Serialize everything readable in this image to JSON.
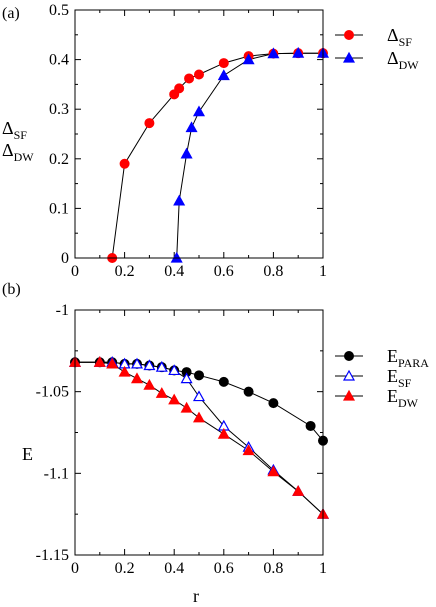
{
  "chart_data": [
    {
      "panel_label": "(a)",
      "type": "line",
      "ylabel": [
        "Δ",
        "SF",
        "Δ",
        "DW"
      ],
      "xlim": [
        0,
        1
      ],
      "ylim": [
        0,
        0.5
      ],
      "xticks": [
        "0",
        "0.2",
        "0.4",
        "0.6",
        "0.8",
        "1"
      ],
      "xtick_values": [
        0,
        0.2,
        0.4,
        0.6,
        0.8,
        1
      ],
      "yticks": [
        "0",
        "0.1",
        "0.2",
        "0.3",
        "0.4",
        "0.5"
      ],
      "ytick_values": [
        0,
        0.1,
        0.2,
        0.3,
        0.4,
        0.5
      ],
      "legend_position": "top-right",
      "series": [
        {
          "name": "Δ",
          "name_sub": "SF",
          "marker": "circle-filled",
          "color": "#ff0000",
          "x": [
            0.15,
            0.2,
            0.3,
            0.4,
            0.42,
            0.46,
            0.5,
            0.6,
            0.7,
            0.8,
            0.9,
            1.0
          ],
          "y": [
            0.0,
            0.19,
            0.272,
            0.33,
            0.342,
            0.362,
            0.37,
            0.393,
            0.407,
            0.412,
            0.413,
            0.413
          ]
        },
        {
          "name": "Δ",
          "name_sub": "DW",
          "marker": "triangle-filled",
          "color": "#0000ff",
          "x": [
            0.41,
            0.42,
            0.45,
            0.47,
            0.5,
            0.6,
            0.7,
            0.8,
            0.9,
            1.0
          ],
          "y": [
            0.0,
            0.115,
            0.21,
            0.263,
            0.295,
            0.368,
            0.4,
            0.412,
            0.413,
            0.413
          ]
        }
      ]
    },
    {
      "panel_label": "(b)",
      "type": "line",
      "ylabel": "E",
      "xlabel": "r",
      "xlim": [
        0,
        1
      ],
      "ylim": [
        -1.15,
        -1
      ],
      "xticks": [
        "0",
        "0.2",
        "0.4",
        "0.6",
        "0.8",
        "1"
      ],
      "xtick_values": [
        0,
        0.2,
        0.4,
        0.6,
        0.8,
        1
      ],
      "yticks": [
        "-1",
        "-1.05",
        "-1.1",
        "-1.15"
      ],
      "ytick_values": [
        -1,
        -1.05,
        -1.1,
        -1.15
      ],
      "legend_position": "top-right",
      "series": [
        {
          "name": "E",
          "name_sub": "PARA",
          "marker": "circle-filled",
          "color": "#000000",
          "x": [
            0,
            0.1,
            0.15,
            0.2,
            0.25,
            0.3,
            0.35,
            0.4,
            0.45,
            0.5,
            0.6,
            0.7,
            0.8,
            0.95,
            1.0
          ],
          "y": [
            -1.032,
            -1.032,
            -1.032,
            -1.033,
            -1.033,
            -1.034,
            -1.035,
            -1.037,
            -1.038,
            -1.04,
            -1.044,
            -1.05,
            -1.057,
            -1.071,
            -1.08
          ]
        },
        {
          "name": "E",
          "name_sub": "SF",
          "marker": "triangle-open",
          "color": "#0000ff",
          "x": [
            0,
            0.1,
            0.15,
            0.2,
            0.25,
            0.3,
            0.35,
            0.4,
            0.45,
            0.5,
            0.6,
            0.7,
            0.8,
            0.9,
            1.0
          ],
          "y": [
            -1.032,
            -1.032,
            -1.032,
            -1.033,
            -1.033,
            -1.034,
            -1.035,
            -1.037,
            -1.042,
            -1.053,
            -1.071,
            -1.084,
            -1.098,
            -1.111,
            -1.125
          ]
        },
        {
          "name": "E",
          "name_sub": "DW",
          "marker": "triangle-filled",
          "color": "#ff0000",
          "x": [
            0,
            0.1,
            0.15,
            0.2,
            0.25,
            0.3,
            0.35,
            0.4,
            0.45,
            0.5,
            0.6,
            0.7,
            0.8,
            0.9,
            1.0
          ],
          "y": [
            -1.032,
            -1.032,
            -1.033,
            -1.038,
            -1.042,
            -1.046,
            -1.051,
            -1.055,
            -1.06,
            -1.066,
            -1.076,
            -1.086,
            -1.099,
            -1.111,
            -1.125
          ]
        }
      ]
    }
  ]
}
